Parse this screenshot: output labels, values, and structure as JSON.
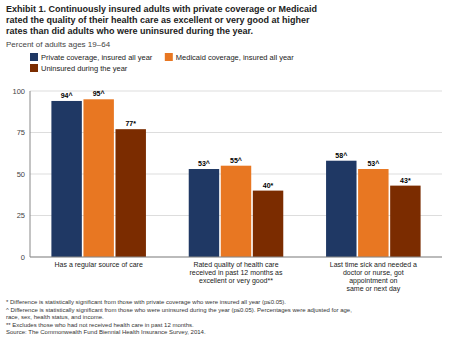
{
  "chart_data": {
    "type": "bar",
    "title": "Exhibit 1. Continuously insured adults with private coverage or Medicaid\nrated the quality of their health care as excellent or very good at higher\nrates than did adults who were uninsured during the year.",
    "subtitle": "Percent of adults ages 19–64",
    "categories": [
      "Has a regular source of care",
      "Rated quality of health care\nreceived in past 12 months as\nexcellent or very good**",
      "Last time sick and needed a\ndoctor or nurse, got\nappointment on\nsame or next day"
    ],
    "series": [
      {
        "name": "Private coverage, insured all year",
        "color": "#1F3864",
        "values": [
          94,
          53,
          58
        ],
        "value_labels": [
          "94^",
          "53^",
          "58^"
        ]
      },
      {
        "name": "Medicaid coverage, insured all year",
        "color": "#E87722",
        "values": [
          95,
          55,
          53
        ],
        "value_labels": [
          "95^",
          "55^",
          "53^"
        ]
      },
      {
        "name": "Uninsured during the year",
        "color": "#7B2C00",
        "values": [
          77,
          40,
          43
        ],
        "value_labels": [
          "77*",
          "40*",
          "43*"
        ]
      }
    ],
    "ylim": [
      0,
      100
    ],
    "yticks": [
      0,
      25,
      50,
      75,
      100
    ],
    "grid": true,
    "legend": "top",
    "annotations": [
      "* Difference is statistically significant from those with private coverage who were insured all year (p≤0.05).",
      "^ Difference is statistically significant from those who were uninsured during the year (p≤0.05). Percentages were adjusted for age,",
      "race, sex, health status, and income.",
      "** Excludes those who had not received health care in past 12 months.",
      "Source: The Commonwealth Fund Biennial Health Insurance Survey, 2014."
    ]
  }
}
